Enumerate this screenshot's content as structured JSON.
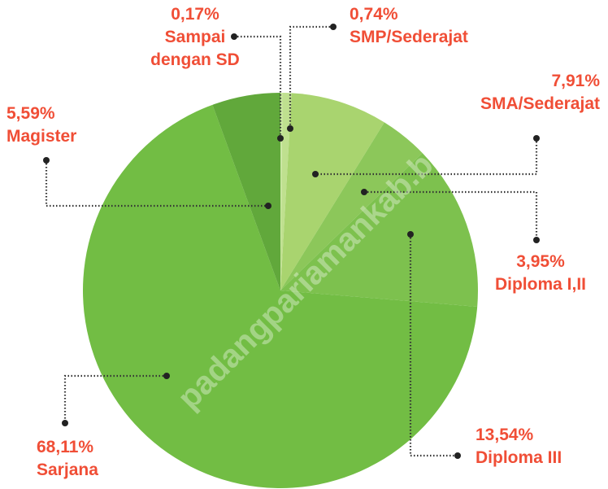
{
  "chart_data": {
    "type": "pie",
    "categories": [
      "Sampai dengan SD",
      "SMP/Sederajat",
      "SMA/Sederajat",
      "Diploma I,II",
      "Diploma III",
      "Sarjana",
      "Magister"
    ],
    "values": [
      0.17,
      0.74,
      7.91,
      3.95,
      13.54,
      68.11,
      5.59
    ],
    "value_labels": [
      "0,17%",
      "0,74%",
      "7,91%",
      "3,95%",
      "13,54%",
      "68,11%",
      "5,59%"
    ],
    "colors": [
      "#c9e6a0",
      "#bfe08f",
      "#a9d46f",
      "#8cc75a",
      "#7dc14e",
      "#72bd44",
      "#61a83b"
    ],
    "watermark": "padangpariamankab.bps.go.id"
  }
}
